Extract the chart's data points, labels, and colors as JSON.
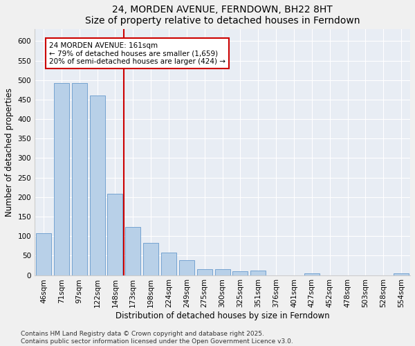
{
  "title": "24, MORDEN AVENUE, FERNDOWN, BH22 8HT",
  "subtitle": "Size of property relative to detached houses in Ferndown",
  "xlabel": "Distribution of detached houses by size in Ferndown",
  "ylabel": "Number of detached properties",
  "categories": [
    "46sqm",
    "71sqm",
    "97sqm",
    "122sqm",
    "148sqm",
    "173sqm",
    "198sqm",
    "224sqm",
    "249sqm",
    "275sqm",
    "300sqm",
    "325sqm",
    "351sqm",
    "376sqm",
    "401sqm",
    "427sqm",
    "452sqm",
    "478sqm",
    "503sqm",
    "528sqm",
    "554sqm"
  ],
  "values": [
    107,
    492,
    492,
    460,
    209,
    124,
    83,
    57,
    38,
    15,
    15,
    9,
    12,
    0,
    0,
    5,
    0,
    0,
    0,
    0,
    4
  ],
  "bar_color": "#b8d0e8",
  "bar_edge_color": "#6699cc",
  "vline_color": "#cc0000",
  "annotation_text": "24 MORDEN AVENUE: 161sqm\n← 79% of detached houses are smaller (1,659)\n20% of semi-detached houses are larger (424) →",
  "annotation_box_color": "#ffffff",
  "annotation_box_edge_color": "#cc0000",
  "footer": "Contains HM Land Registry data © Crown copyright and database right 2025.\nContains public sector information licensed under the Open Government Licence v3.0.",
  "ylim": [
    0,
    630
  ],
  "yticks": [
    0,
    50,
    100,
    150,
    200,
    250,
    300,
    350,
    400,
    450,
    500,
    550,
    600
  ],
  "bg_color": "#e8edf4",
  "fig_bg_color": "#f0f0f0",
  "title_fontsize": 10,
  "tick_fontsize": 7.5,
  "label_fontsize": 8.5,
  "footer_fontsize": 6.5,
  "annotation_fontsize": 7.5
}
